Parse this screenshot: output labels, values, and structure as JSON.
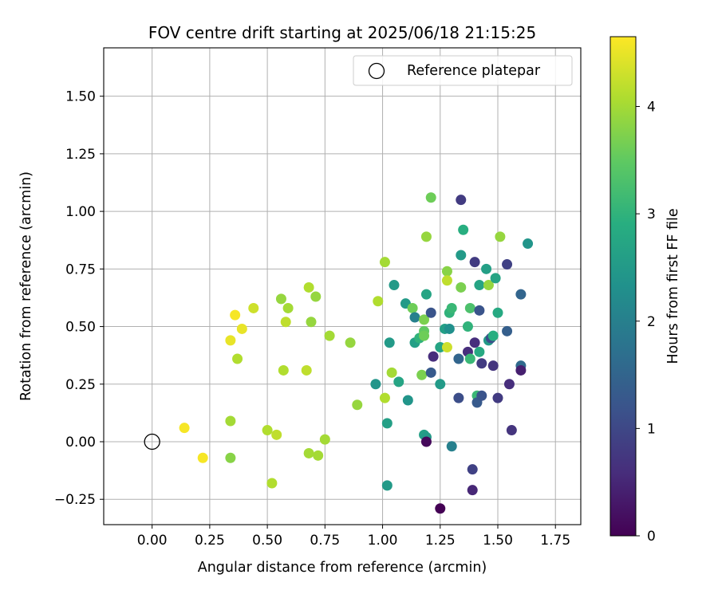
{
  "chart_data": {
    "type": "scatter",
    "title": "FOV centre drift starting at 2025/06/18 21:15:25",
    "xlabel": "Angular distance from reference (arcmin)",
    "ylabel": "Rotation from reference (arcmin)",
    "xlim": [
      -0.21,
      1.86
    ],
    "ylim": [
      -0.36,
      1.71
    ],
    "xticks": [
      0.0,
      0.25,
      0.5,
      0.75,
      1.0,
      1.25,
      1.5,
      1.75
    ],
    "xtick_labels": [
      "0.00",
      "0.25",
      "0.50",
      "0.75",
      "1.00",
      "1.25",
      "1.50",
      "1.75"
    ],
    "yticks": [
      -0.25,
      0.0,
      0.25,
      0.5,
      0.75,
      1.0,
      1.25,
      1.5
    ],
    "ytick_labels": [
      "−0.25",
      "0.00",
      "0.25",
      "0.50",
      "0.75",
      "1.00",
      "1.25",
      "1.50"
    ],
    "grid": true,
    "legend": {
      "position": "top-right",
      "entries": [
        "Reference platepar"
      ]
    },
    "colorbar": {
      "label": "Hours from first FF file",
      "colormap": "viridis",
      "range": [
        0,
        4.65
      ],
      "ticks": [
        0,
        1,
        2,
        3,
        4
      ],
      "tick_labels": [
        "0",
        "1",
        "2",
        "3",
        "4"
      ]
    },
    "reference_point": {
      "x": 0.0,
      "y": 0.0
    },
    "points": [
      {
        "x": 0.14,
        "y": 0.06,
        "h": 4.6
      },
      {
        "x": 0.22,
        "y": -0.07,
        "h": 4.6
      },
      {
        "x": 0.34,
        "y": 0.44,
        "h": 4.5
      },
      {
        "x": 0.36,
        "y": 0.55,
        "h": 4.6
      },
      {
        "x": 0.39,
        "y": 0.49,
        "h": 4.5
      },
      {
        "x": 0.44,
        "y": 0.58,
        "h": 4.3
      },
      {
        "x": 0.37,
        "y": 0.36,
        "h": 4.1
      },
      {
        "x": 0.34,
        "y": 0.09,
        "h": 4.0
      },
      {
        "x": 0.34,
        "y": -0.07,
        "h": 3.8
      },
      {
        "x": 0.5,
        "y": 0.05,
        "h": 4.1
      },
      {
        "x": 0.54,
        "y": 0.03,
        "h": 4.2
      },
      {
        "x": 0.52,
        "y": -0.18,
        "h": 4.1
      },
      {
        "x": 0.56,
        "y": 0.62,
        "h": 3.9
      },
      {
        "x": 0.59,
        "y": 0.58,
        "h": 4.0
      },
      {
        "x": 0.58,
        "y": 0.52,
        "h": 4.2
      },
      {
        "x": 0.57,
        "y": 0.31,
        "h": 4.1
      },
      {
        "x": 0.68,
        "y": 0.67,
        "h": 4.1
      },
      {
        "x": 0.71,
        "y": 0.63,
        "h": 3.9
      },
      {
        "x": 0.69,
        "y": 0.52,
        "h": 3.9
      },
      {
        "x": 0.67,
        "y": 0.31,
        "h": 4.2
      },
      {
        "x": 0.68,
        "y": -0.05,
        "h": 4.0
      },
      {
        "x": 0.72,
        "y": -0.06,
        "h": 4.0
      },
      {
        "x": 0.75,
        "y": 0.01,
        "h": 4.0
      },
      {
        "x": 0.77,
        "y": 0.46,
        "h": 4.0
      },
      {
        "x": 0.86,
        "y": 0.43,
        "h": 3.9
      },
      {
        "x": 0.89,
        "y": 0.16,
        "h": 3.9
      },
      {
        "x": 0.98,
        "y": 0.61,
        "h": 4.1
      },
      {
        "x": 1.01,
        "y": 0.78,
        "h": 4.0
      },
      {
        "x": 1.01,
        "y": 0.19,
        "h": 4.1
      },
      {
        "x": 1.04,
        "y": 0.3,
        "h": 4.0
      },
      {
        "x": 0.97,
        "y": 0.25,
        "h": 2.4
      },
      {
        "x": 1.02,
        "y": 0.08,
        "h": 2.6
      },
      {
        "x": 1.02,
        "y": -0.19,
        "h": 2.5
      },
      {
        "x": 1.03,
        "y": 0.43,
        "h": 2.5
      },
      {
        "x": 1.05,
        "y": 0.68,
        "h": 2.5
      },
      {
        "x": 1.07,
        "y": 0.26,
        "h": 2.7
      },
      {
        "x": 1.1,
        "y": 0.6,
        "h": 2.5
      },
      {
        "x": 1.11,
        "y": 0.18,
        "h": 2.4
      },
      {
        "x": 1.13,
        "y": 0.58,
        "h": 3.6
      },
      {
        "x": 1.14,
        "y": 0.54,
        "h": 2.0
      },
      {
        "x": 1.14,
        "y": 0.43,
        "h": 2.6
      },
      {
        "x": 1.16,
        "y": 0.45,
        "h": 3.0
      },
      {
        "x": 1.17,
        "y": 0.29,
        "h": 3.7
      },
      {
        "x": 1.18,
        "y": 0.53,
        "h": 3.7
      },
      {
        "x": 1.18,
        "y": 0.48,
        "h": 3.5
      },
      {
        "x": 1.18,
        "y": 0.46,
        "h": 3.6
      },
      {
        "x": 1.18,
        "y": 0.03,
        "h": 2.6
      },
      {
        "x": 1.19,
        "y": 0.02,
        "h": 2.5
      },
      {
        "x": 1.19,
        "y": 0.0,
        "h": 0.1
      },
      {
        "x": 1.19,
        "y": 0.64,
        "h": 2.7
      },
      {
        "x": 1.19,
        "y": 0.89,
        "h": 3.9
      },
      {
        "x": 1.21,
        "y": 1.06,
        "h": 3.6
      },
      {
        "x": 1.21,
        "y": 0.56,
        "h": 1.2
      },
      {
        "x": 1.21,
        "y": 0.3,
        "h": 1.3
      },
      {
        "x": 1.22,
        "y": 0.37,
        "h": 0.6
      },
      {
        "x": 1.25,
        "y": 0.41,
        "h": 2.7
      },
      {
        "x": 1.25,
        "y": 0.25,
        "h": 2.5
      },
      {
        "x": 1.25,
        "y": -0.29,
        "h": 0.0
      },
      {
        "x": 1.27,
        "y": 0.49,
        "h": 2.6
      },
      {
        "x": 1.28,
        "y": 0.74,
        "h": 3.8
      },
      {
        "x": 1.28,
        "y": 0.7,
        "h": 4.2
      },
      {
        "x": 1.28,
        "y": 0.41,
        "h": 4.3
      },
      {
        "x": 1.29,
        "y": 0.49,
        "h": 2.3
      },
      {
        "x": 1.29,
        "y": 0.56,
        "h": 3.0
      },
      {
        "x": 1.3,
        "y": 0.58,
        "h": 3.1
      },
      {
        "x": 1.3,
        "y": -0.02,
        "h": 2.0
      },
      {
        "x": 1.33,
        "y": 0.36,
        "h": 1.5
      },
      {
        "x": 1.33,
        "y": 0.19,
        "h": 1.1
      },
      {
        "x": 1.34,
        "y": 0.81,
        "h": 2.5
      },
      {
        "x": 1.34,
        "y": 1.05,
        "h": 0.8
      },
      {
        "x": 1.34,
        "y": 0.67,
        "h": 3.7
      },
      {
        "x": 1.35,
        "y": 0.92,
        "h": 2.9
      },
      {
        "x": 1.37,
        "y": 0.39,
        "h": 0.6
      },
      {
        "x": 1.37,
        "y": 0.5,
        "h": 3.0
      },
      {
        "x": 1.38,
        "y": 0.36,
        "h": 3.1
      },
      {
        "x": 1.38,
        "y": 0.58,
        "h": 3.3
      },
      {
        "x": 1.39,
        "y": -0.12,
        "h": 0.9
      },
      {
        "x": 1.39,
        "y": -0.21,
        "h": 0.5
      },
      {
        "x": 1.4,
        "y": 0.78,
        "h": 0.8
      },
      {
        "x": 1.4,
        "y": 0.43,
        "h": 0.6
      },
      {
        "x": 1.41,
        "y": 0.2,
        "h": 3.1
      },
      {
        "x": 1.41,
        "y": 0.17,
        "h": 1.3
      },
      {
        "x": 1.42,
        "y": 0.57,
        "h": 1.2
      },
      {
        "x": 1.42,
        "y": 0.68,
        "h": 2.7
      },
      {
        "x": 1.42,
        "y": 0.39,
        "h": 2.8
      },
      {
        "x": 1.43,
        "y": 0.2,
        "h": 1.2
      },
      {
        "x": 1.43,
        "y": 0.34,
        "h": 0.8
      },
      {
        "x": 1.45,
        "y": 0.75,
        "h": 2.6
      },
      {
        "x": 1.46,
        "y": 0.68,
        "h": 3.9
      },
      {
        "x": 1.46,
        "y": 0.44,
        "h": 2.5
      },
      {
        "x": 1.47,
        "y": 0.45,
        "h": 1.1
      },
      {
        "x": 1.48,
        "y": 0.33,
        "h": 0.7
      },
      {
        "x": 1.48,
        "y": 0.46,
        "h": 2.9
      },
      {
        "x": 1.49,
        "y": 0.71,
        "h": 2.7
      },
      {
        "x": 1.5,
        "y": 0.56,
        "h": 2.8
      },
      {
        "x": 1.5,
        "y": 0.19,
        "h": 0.8
      },
      {
        "x": 1.51,
        "y": 0.89,
        "h": 3.9
      },
      {
        "x": 1.54,
        "y": 0.48,
        "h": 1.4
      },
      {
        "x": 1.54,
        "y": 0.77,
        "h": 0.9
      },
      {
        "x": 1.55,
        "y": 0.25,
        "h": 0.6
      },
      {
        "x": 1.56,
        "y": 0.05,
        "h": 0.7
      },
      {
        "x": 1.6,
        "y": 0.64,
        "h": 1.5
      },
      {
        "x": 1.6,
        "y": 0.33,
        "h": 1.6
      },
      {
        "x": 1.6,
        "y": 0.31,
        "h": 0.4
      },
      {
        "x": 1.63,
        "y": 0.86,
        "h": 2.4
      }
    ]
  }
}
